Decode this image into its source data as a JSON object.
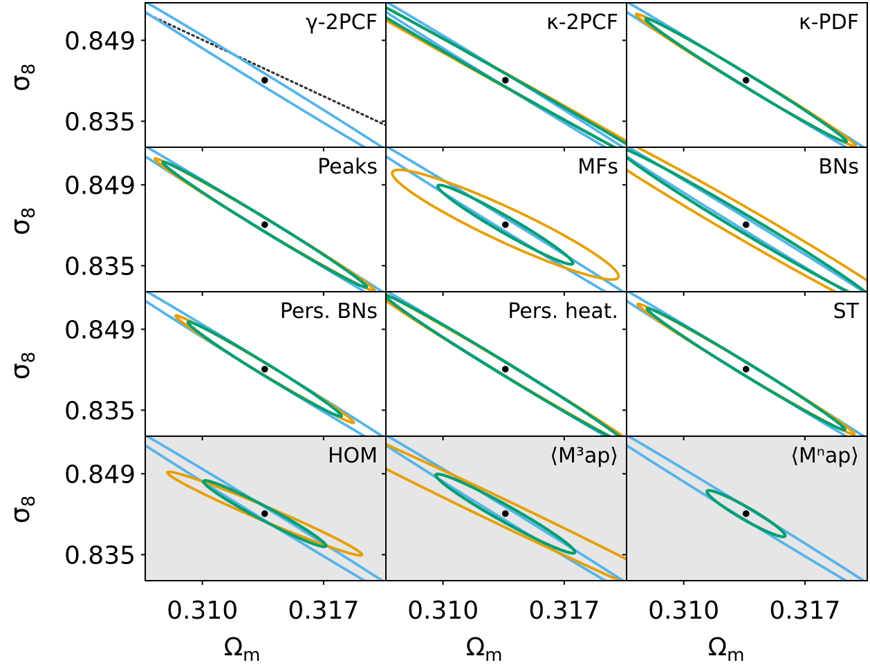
{
  "figure": {
    "xlabel": "Ω",
    "xlabel_sub": "m",
    "ylabel": "σ",
    "ylabel_sub": "8"
  },
  "colors": {
    "reference": "#56B4E9",
    "statistic": "#E69F00",
    "combined": "#009E73",
    "fiducial": "#000000",
    "degeneracy_line": "#333333",
    "highlight_background": "#e6e6e6"
  },
  "chart_data": {
    "type": "scatter",
    "layout": "4 rows x 3 columns, shared axes",
    "xlim": [
      0.3067,
      0.3206
    ],
    "ylim": [
      0.8305,
      0.8555
    ],
    "xticks": [
      0.31,
      0.317
    ],
    "xtick_labels": [
      "0.310",
      "0.317"
    ],
    "yticks": [
      0.849,
      0.835
    ],
    "ytick_labels": [
      "0.849",
      "0.835"
    ],
    "fiducial": {
      "x": 0.3136,
      "y": 0.8421
    },
    "reference_contour": {
      "cx": 0.3136,
      "cy": 0.8421,
      "a": 0.0126,
      "b": 0.00032,
      "angle": 31.6
    },
    "panels": [
      {
        "label": "γ-2PCF",
        "highlight": false,
        "statistic": null,
        "combined": null,
        "degeneracy_line": true
      },
      {
        "label": "κ-2PCF",
        "highlight": false,
        "statistic": {
          "a": 0.0163,
          "b": 0.00035,
          "angle": 29
        },
        "combined": {
          "a": 0.0121,
          "b": 0.00032,
          "angle": 29.6
        }
      },
      {
        "label": "κ-PDF",
        "highlight": false,
        "statistic": {
          "a": 0.0074,
          "b": 0.00035,
          "angle": 31
        },
        "combined": {
          "a": 0.0068,
          "b": 0.00034,
          "angle": 31.5
        }
      },
      {
        "label": "Peaks",
        "highlight": false,
        "statistic": {
          "a": 0.0074,
          "b": 0.00033,
          "angle": 31
        },
        "combined": {
          "a": 0.0069,
          "b": 0.00034,
          "angle": 31.5
        }
      },
      {
        "label": "MFs",
        "highlight": false,
        "statistic": {
          "a": 0.0072,
          "b": 0.00095,
          "angle": 25
        },
        "combined": {
          "a": 0.0045,
          "b": 0.00045,
          "angle": 30
        }
      },
      {
        "label": "BNs",
        "highlight": false,
        "statistic": {
          "a": 0.0134,
          "b": 0.00085,
          "angle": 30.1
        },
        "combined": {
          "a": 0.0087,
          "b": 0.00048,
          "angle": 30.9
        }
      },
      {
        "label": "Pers. BNs",
        "highlight": false,
        "statistic": {
          "a": 0.006,
          "b": 0.0003,
          "angle": 31
        },
        "combined": {
          "a": 0.0052,
          "b": 0.00032,
          "angle": 31.5
        }
      },
      {
        "label": "Pers. heat.",
        "highlight": false,
        "statistic": {
          "a": 0.0091,
          "b": 0.00033,
          "angle": 31
        },
        "combined": {
          "a": 0.0081,
          "b": 0.00035,
          "angle": 31.5
        }
      },
      {
        "label": "ST",
        "highlight": false,
        "statistic": {
          "a": 0.0073,
          "b": 0.00033,
          "angle": 31
        },
        "combined": {
          "a": 0.0067,
          "b": 0.00034,
          "angle": 31.5
        }
      },
      {
        "label": "HOM",
        "highlight": true,
        "statistic": {
          "a": 0.0061,
          "b": 0.0004,
          "angle": 23
        },
        "combined": {
          "a": 0.004,
          "b": 0.00038,
          "angle": 28
        }
      },
      {
        "label": "⟨M³ap⟩",
        "highlight": true,
        "statistic": {
          "a": 0.0164,
          "b": 0.0007,
          "angle": 25.6
        },
        "combined": {
          "a": 0.0046,
          "b": 0.00045,
          "angle": 29.3
        }
      },
      {
        "label": "⟨Mⁿap⟩",
        "highlight": true,
        "statistic": null,
        "combined": {
          "a": 0.0026,
          "b": 0.00035,
          "angle": 30
        }
      }
    ],
    "degeneracy_line": {
      "x": [
        0.3067,
        0.3206
      ],
      "y": [
        0.8537,
        0.8343
      ]
    }
  }
}
